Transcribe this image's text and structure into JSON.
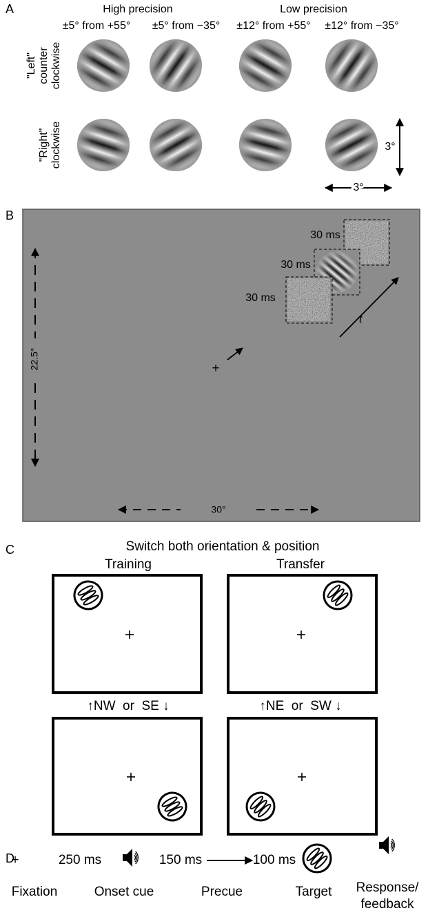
{
  "panel_a": {
    "label": "A",
    "groups": [
      "High precision",
      "Low precision"
    ],
    "columns": [
      "±5° from +55°",
      "±5° from −35°",
      "±12° from +55°",
      "±12° from −35°"
    ],
    "rows": [
      {
        "label_lines": [
          "\"Left\"",
          "counter",
          "clockwise"
        ]
      },
      {
        "label_lines": [
          "\"Right\"",
          "clockwise"
        ]
      }
    ],
    "size_labels": [
      "3°",
      "3°"
    ]
  },
  "panel_b": {
    "label": "B",
    "durations": [
      "30 ms",
      "30 ms",
      "30 ms"
    ],
    "time_label": "t",
    "fixation": "+",
    "height_label": "22.5°",
    "width_label": "30°"
  },
  "panel_c": {
    "label": "C",
    "title": "Switch both orientation & position",
    "conditions": [
      {
        "name": "Training",
        "responses": "↑NW  or  SE ↓"
      },
      {
        "name": "Transfer",
        "responses": "↑NE  or  SW ↓"
      }
    ]
  },
  "panel_d": {
    "label": "D",
    "fixation_symbol": "+",
    "durations": [
      "250 ms",
      "150 ms",
      "100 ms"
    ],
    "steps": [
      "Fixation",
      "Onset cue",
      "Precue",
      "Target"
    ],
    "last_step_lines": [
      "Response/",
      "feedback"
    ]
  }
}
